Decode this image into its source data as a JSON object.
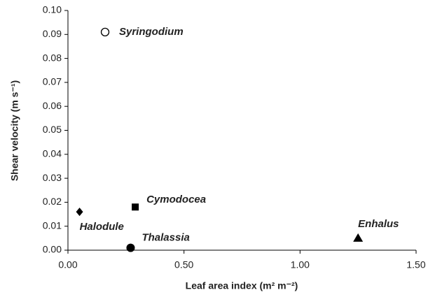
{
  "chart_data": {
    "type": "scatter",
    "x_label": "Leaf area index (m² m⁻²)",
    "y_label": "Shear velocity (m s⁻¹)",
    "point_labels": [
      "Syringodium",
      "Cymodocea",
      "Halodule",
      "Thalassia",
      "Enhalus"
    ],
    "x": [
      0.16,
      0.29,
      0.05,
      0.27,
      1.25
    ],
    "values": [
      0.091,
      0.018,
      0.016,
      0.001,
      0.005
    ],
    "markers": [
      "open-circle",
      "square",
      "diamond",
      "circle",
      "triangle"
    ],
    "color": "#000000",
    "xlim": [
      0,
      1.5
    ],
    "xticks": [
      {
        "value": 0,
        "label": "0.00"
      },
      {
        "value": 0.5,
        "label": "0.50"
      },
      {
        "value": 1,
        "label": "1.00"
      },
      {
        "value": 1.5,
        "label": "1.50"
      }
    ],
    "ylim": [
      0,
      0.1
    ],
    "yticks": [
      {
        "value": 0,
        "label": "0.00"
      },
      0.01,
      0.02,
      0.03,
      0.04,
      0.05,
      0.06,
      0.07,
      0.08,
      0.09,
      {
        "value": 0.1,
        "label": "0.10"
      }
    ],
    "grid": false
  }
}
